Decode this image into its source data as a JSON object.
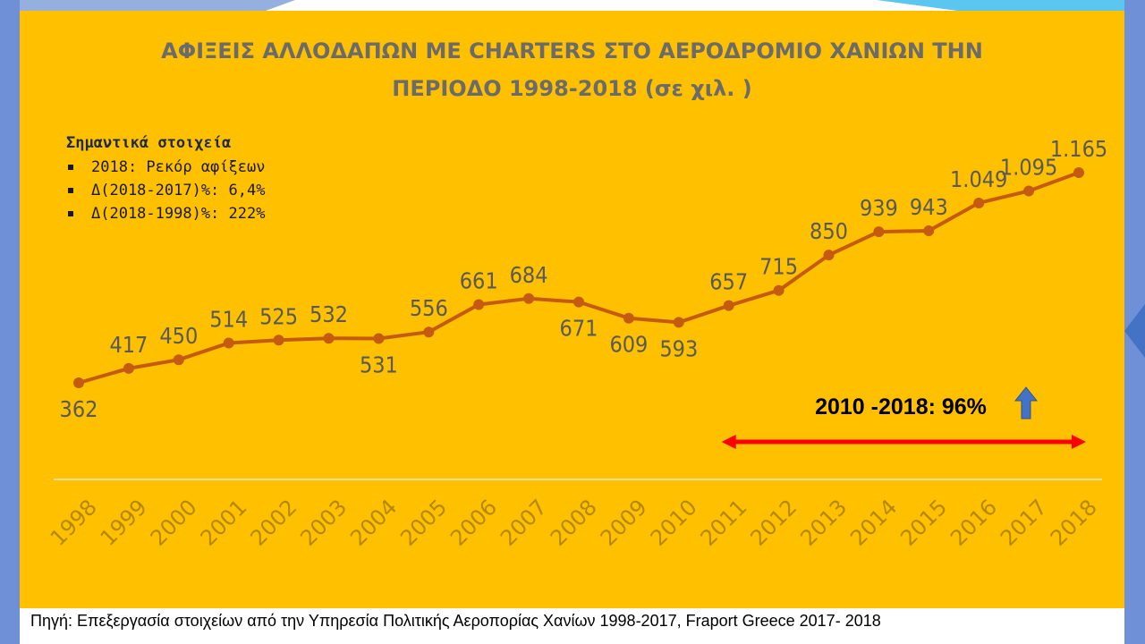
{
  "colors": {
    "panel": "#ffc000",
    "line": "#c55a11",
    "arrow": "#ff0000",
    "up_arrow": "#4472c4",
    "label": "#595959",
    "title": "#6b6b6b",
    "accent_shapes": "#4472c4"
  },
  "chart_data": {
    "type": "line",
    "title_line1": "ΑΦΙΞΕΙΣ ΑΛΛΟΔΑΠΩΝ ΜΕ CHARTERS ΣΤΟ ΑΕΡΟΔΡΟΜΙΟ ΧΑΝΙΩΝ ΤΗΝ",
    "title_line2": "ΠΕΡΙΟΔΟ 1998-2018 (σε χιλ. )",
    "x": [
      "1998",
      "1999",
      "2000",
      "2001",
      "2002",
      "2003",
      "2004",
      "2005",
      "2006",
      "2007",
      "2008",
      "2009",
      "2010",
      "2011",
      "2012",
      "2013",
      "2014",
      "2015",
      "2016",
      "2017",
      "2018"
    ],
    "values": [
      362,
      417,
      450,
      514,
      525,
      532,
      531,
      556,
      661,
      684,
      671,
      609,
      593,
      657,
      715,
      850,
      939,
      943,
      1049,
      1095,
      1165
    ],
    "data_labels": [
      "362",
      "417",
      "450",
      "514",
      "525",
      "532",
      "531",
      "556",
      "661",
      "684",
      "671",
      "609",
      "593",
      "657",
      "715",
      "850",
      "939",
      "943",
      "1.049",
      "1.095",
      "1.165"
    ],
    "label_position": [
      "below",
      "above",
      "above",
      "above",
      "above",
      "above",
      "below",
      "above",
      "above",
      "above",
      "below",
      "below",
      "below",
      "above",
      "above",
      "above",
      "above",
      "above",
      "above",
      "above",
      "above"
    ],
    "ylim": [
      250,
      1250
    ],
    "grid": false,
    "legend": "none",
    "annotation": {
      "text": "2010 -2018: 96%",
      "from": "2011",
      "to": "2018"
    }
  },
  "notes": {
    "heading": "Σημαντικά στοιχεία",
    "items": [
      "2018: Ρεκόρ αφίξεων",
      "Δ(2018-2017)%: 6,4%",
      "Δ(2018-1998)%: 222%"
    ]
  },
  "source": "Πηγή: Επεξεργασία στοιχείων από την Υπηρεσία Πολιτικής Αεροπορίας Χανίων 1998-2017, Fraport Greece 2017- 2018"
}
